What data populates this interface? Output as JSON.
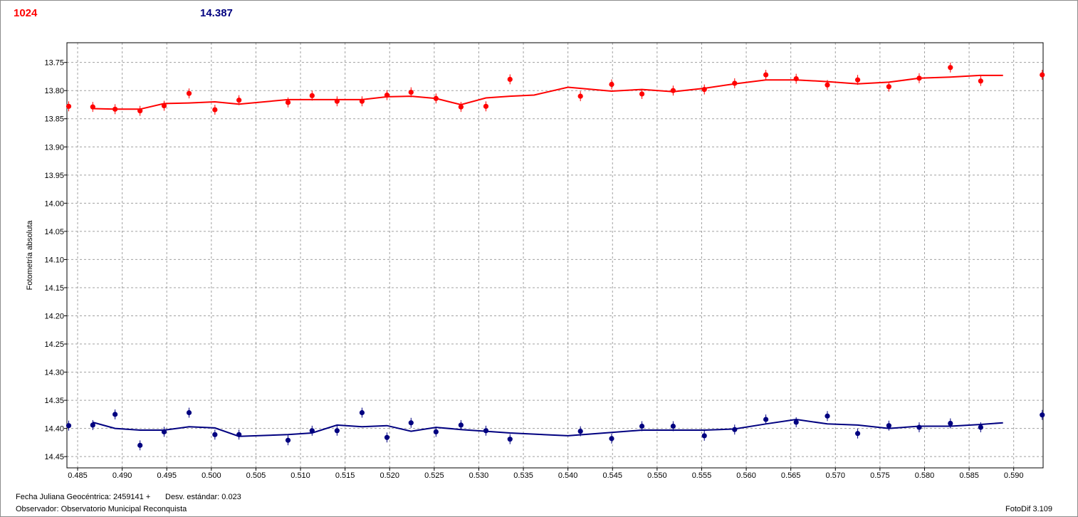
{
  "header": {
    "left_value": "1024",
    "right_value": "14.387"
  },
  "footer": {
    "date_label": "Fecha Juliana Geocéntrica: 2459141 +",
    "std_label": "Desv. estándar: 0.023",
    "observer": "Observatorio Municipal Reconquista",
    "observer_label": "Observador: Observatorio Municipal Reconquista",
    "version": "FotoDif 3.109"
  },
  "chart_data": {
    "type": "scatter",
    "ylabel": "Fotometría absoluta",
    "xlabel": "",
    "xlim": [
      0.4838,
      0.5933
    ],
    "ylim": [
      13.715,
      14.47
    ],
    "y_inverted": true,
    "grid": true,
    "xticks": [
      "0.485",
      "0.490",
      "0.495",
      "0.500",
      "0.505",
      "0.510",
      "0.515",
      "0.520",
      "0.525",
      "0.530",
      "0.535",
      "0.540",
      "0.545",
      "0.550",
      "0.555",
      "0.560",
      "0.565",
      "0.570",
      "0.575",
      "0.580",
      "0.585",
      "0.590"
    ],
    "yticks": [
      "13.75",
      "13.80",
      "13.85",
      "13.90",
      "13.95",
      "14.00",
      "14.05",
      "14.10",
      "14.15",
      "14.20",
      "14.25",
      "14.30",
      "14.35",
      "14.40",
      "14.45"
    ],
    "series": [
      {
        "color": "#ff0000",
        "points": [
          [
            0.484,
            13.828
          ],
          [
            0.4867,
            13.829
          ],
          [
            0.4892,
            13.833
          ],
          [
            0.492,
            13.836
          ],
          [
            0.4947,
            13.827
          ],
          [
            0.4975,
            13.805
          ],
          [
            0.5004,
            13.834
          ],
          [
            0.5031,
            13.817
          ],
          [
            0.5086,
            13.821
          ],
          [
            0.5113,
            13.809
          ],
          [
            0.5141,
            13.819
          ],
          [
            0.5169,
            13.819
          ],
          [
            0.5197,
            13.808
          ],
          [
            0.5224,
            13.803
          ],
          [
            0.5252,
            13.814
          ],
          [
            0.528,
            13.829
          ],
          [
            0.5308,
            13.828
          ],
          [
            0.5335,
            13.78
          ],
          [
            0.5414,
            13.81
          ],
          [
            0.5449,
            13.789
          ],
          [
            0.5483,
            13.806
          ],
          [
            0.5518,
            13.8
          ],
          [
            0.5553,
            13.798
          ],
          [
            0.5587,
            13.787
          ],
          [
            0.5622,
            13.772
          ],
          [
            0.5656,
            13.779
          ],
          [
            0.5691,
            13.79
          ],
          [
            0.5725,
            13.781
          ],
          [
            0.576,
            13.793
          ],
          [
            0.5794,
            13.778
          ],
          [
            0.5829,
            13.759
          ],
          [
            0.5863,
            13.783
          ],
          [
            0.5932,
            13.772
          ]
        ],
        "trend": [
          [
            0.4867,
            13.832
          ],
          [
            0.4892,
            13.833
          ],
          [
            0.492,
            13.833
          ],
          [
            0.4947,
            13.823
          ],
          [
            0.4975,
            13.822
          ],
          [
            0.5004,
            13.82
          ],
          [
            0.5031,
            13.824
          ],
          [
            0.5086,
            13.816
          ],
          [
            0.5113,
            13.816
          ],
          [
            0.5141,
            13.816
          ],
          [
            0.5169,
            13.816
          ],
          [
            0.5197,
            13.811
          ],
          [
            0.5224,
            13.81
          ],
          [
            0.5252,
            13.814
          ],
          [
            0.528,
            13.825
          ],
          [
            0.5308,
            13.813
          ],
          [
            0.5335,
            13.81
          ],
          [
            0.5362,
            13.808
          ],
          [
            0.54,
            13.794
          ],
          [
            0.5449,
            13.801
          ],
          [
            0.5483,
            13.798
          ],
          [
            0.5518,
            13.802
          ],
          [
            0.5553,
            13.796
          ],
          [
            0.5587,
            13.788
          ],
          [
            0.5622,
            13.781
          ],
          [
            0.5656,
            13.781
          ],
          [
            0.5691,
            13.784
          ],
          [
            0.5725,
            13.788
          ],
          [
            0.576,
            13.785
          ],
          [
            0.5794,
            13.778
          ],
          [
            0.5829,
            13.776
          ],
          [
            0.5862,
            13.773
          ],
          [
            0.5888,
            13.773
          ]
        ]
      },
      {
        "color": "#000080",
        "points": [
          [
            0.484,
            14.395
          ],
          [
            0.4867,
            14.394
          ],
          [
            0.4892,
            14.375
          ],
          [
            0.492,
            14.43
          ],
          [
            0.4947,
            14.406
          ],
          [
            0.4975,
            14.372
          ],
          [
            0.5004,
            14.411
          ],
          [
            0.5031,
            14.411
          ],
          [
            0.5086,
            14.421
          ],
          [
            0.5113,
            14.404
          ],
          [
            0.5141,
            14.404
          ],
          [
            0.5169,
            14.372
          ],
          [
            0.5197,
            14.416
          ],
          [
            0.5224,
            14.39
          ],
          [
            0.5252,
            14.406
          ],
          [
            0.528,
            14.394
          ],
          [
            0.5308,
            14.404
          ],
          [
            0.5335,
            14.419
          ],
          [
            0.5414,
            14.405
          ],
          [
            0.5449,
            14.418
          ],
          [
            0.5483,
            14.396
          ],
          [
            0.5518,
            14.396
          ],
          [
            0.5553,
            14.413
          ],
          [
            0.5587,
            14.402
          ],
          [
            0.5622,
            14.384
          ],
          [
            0.5656,
            14.389
          ],
          [
            0.5691,
            14.378
          ],
          [
            0.5725,
            14.409
          ],
          [
            0.576,
            14.395
          ],
          [
            0.5794,
            14.398
          ],
          [
            0.5829,
            14.391
          ],
          [
            0.5863,
            14.398
          ],
          [
            0.5932,
            14.376
          ]
        ],
        "trend": [
          [
            0.4867,
            14.389
          ],
          [
            0.4892,
            14.4
          ],
          [
            0.492,
            14.403
          ],
          [
            0.4947,
            14.403
          ],
          [
            0.4975,
            14.397
          ],
          [
            0.5004,
            14.399
          ],
          [
            0.5031,
            14.414
          ],
          [
            0.5086,
            14.411
          ],
          [
            0.5113,
            14.408
          ],
          [
            0.5141,
            14.394
          ],
          [
            0.5169,
            14.397
          ],
          [
            0.5197,
            14.395
          ],
          [
            0.5224,
            14.405
          ],
          [
            0.5252,
            14.398
          ],
          [
            0.528,
            14.402
          ],
          [
            0.5308,
            14.405
          ],
          [
            0.5335,
            14.408
          ],
          [
            0.54,
            14.413
          ],
          [
            0.5449,
            14.407
          ],
          [
            0.5483,
            14.403
          ],
          [
            0.5518,
            14.403
          ],
          [
            0.5553,
            14.403
          ],
          [
            0.5587,
            14.401
          ],
          [
            0.5622,
            14.392
          ],
          [
            0.5656,
            14.384
          ],
          [
            0.5691,
            14.392
          ],
          [
            0.5725,
            14.394
          ],
          [
            0.576,
            14.4
          ],
          [
            0.5794,
            14.396
          ],
          [
            0.5829,
            14.396
          ],
          [
            0.5862,
            14.393
          ],
          [
            0.5888,
            14.39
          ]
        ]
      }
    ]
  }
}
